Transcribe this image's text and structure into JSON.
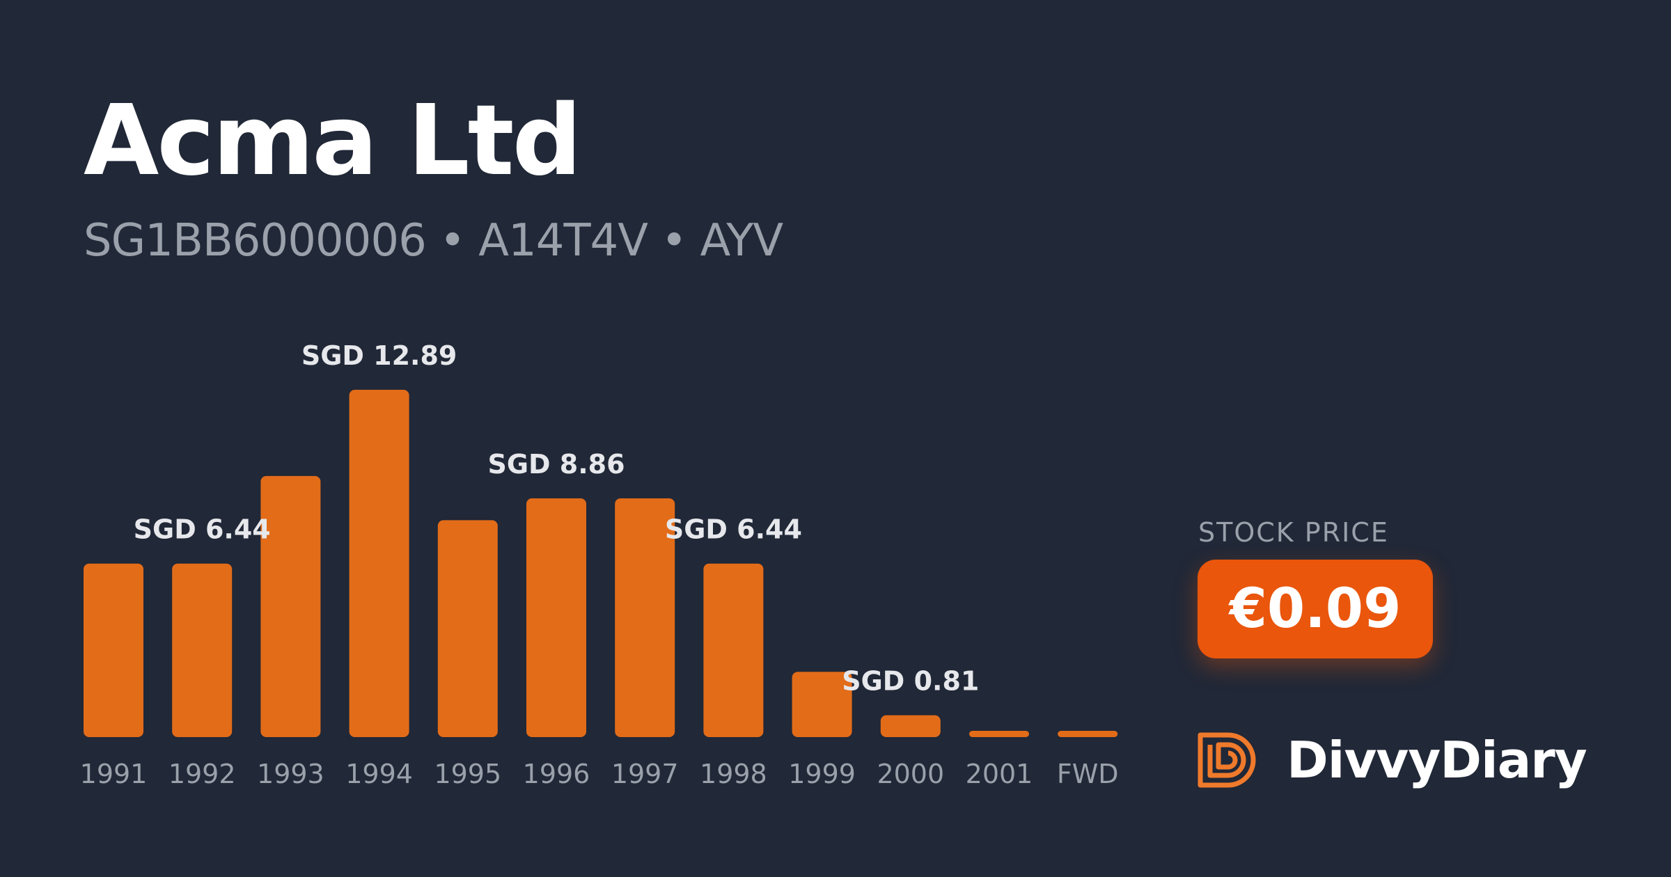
{
  "header": {
    "company_name": "Acma Ltd",
    "identifiers": "SG1BB6000006 • A14T4V • AYV"
  },
  "price": {
    "label": "STOCK PRICE",
    "value": "€0.09"
  },
  "brand": {
    "name": "DivvyDiary",
    "icon": "divvydiary-logo-icon"
  },
  "colors": {
    "background": "#212837",
    "bar": "#e36c19",
    "price_badge": "#e9560c"
  },
  "chart_data": {
    "type": "bar",
    "title": "",
    "xlabel": "",
    "ylabel": "",
    "categories": [
      "1991",
      "1992",
      "1993",
      "1994",
      "1995",
      "1996",
      "1997",
      "1998",
      "1999",
      "2000",
      "2001",
      "FWD"
    ],
    "values": [
      6.44,
      6.44,
      9.69,
      12.89,
      8.05,
      8.86,
      8.86,
      6.44,
      2.42,
      0.81,
      0.16,
      0.16
    ],
    "data_labels": [
      {
        "index": 1,
        "text": "SGD 6.44"
      },
      {
        "index": 3,
        "text": "SGD 12.89"
      },
      {
        "index": 5,
        "text": "SGD 8.86"
      },
      {
        "index": 7,
        "text": "SGD 6.44"
      },
      {
        "index": 9,
        "text": "SGD 0.81"
      }
    ],
    "currency": "SGD",
    "ylim": [
      0,
      12.89
    ],
    "grid": false,
    "legend": "none"
  }
}
